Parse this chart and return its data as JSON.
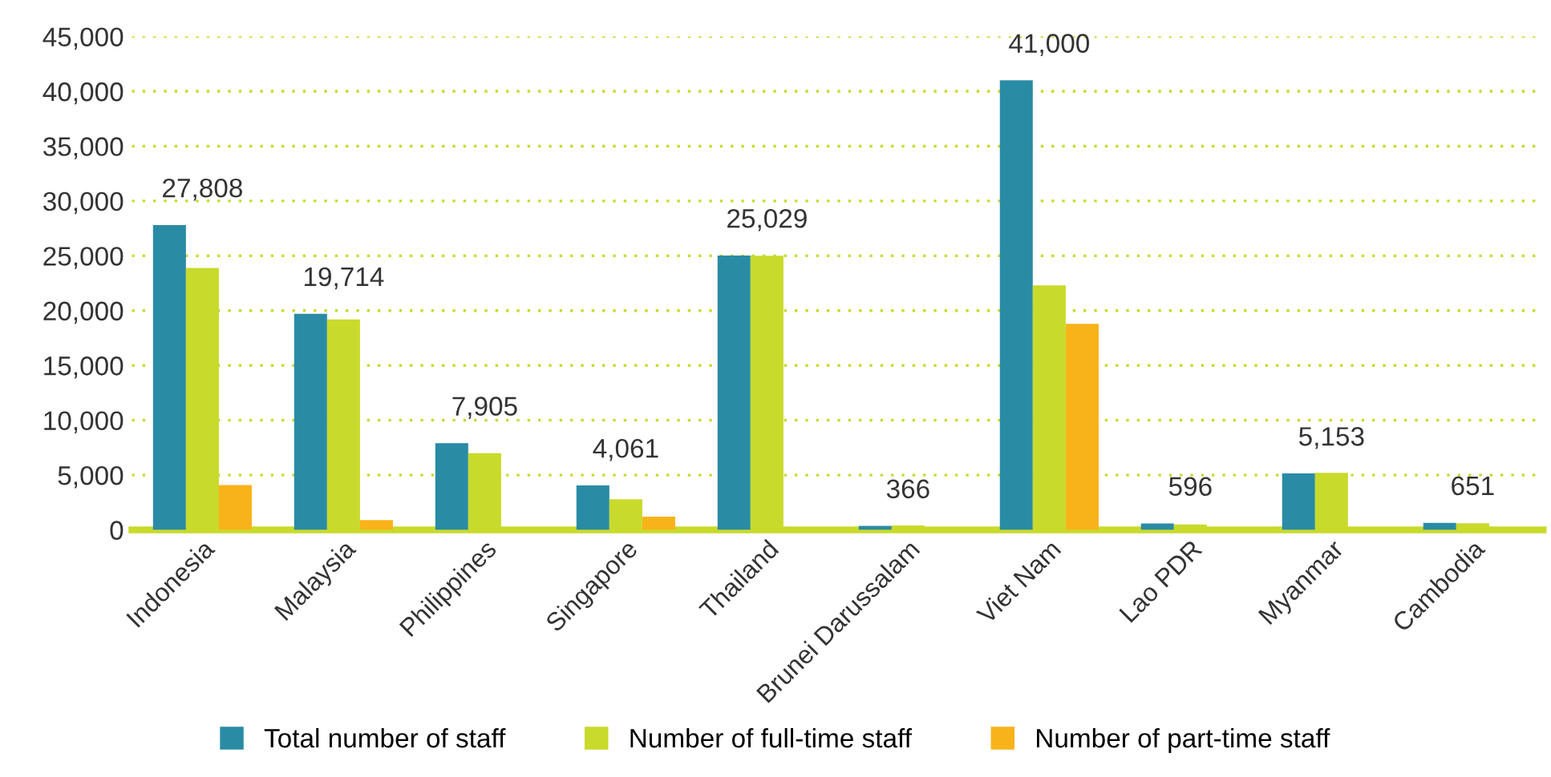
{
  "chart_data": {
    "type": "bar",
    "categories": [
      "Indonesia",
      "Malaysia",
      "Philippines",
      "Singapore",
      "Thailand",
      "Brunei Darussalam",
      "Viet Nam",
      "Lao PDR",
      "Myanmar",
      "Cambodia"
    ],
    "series": [
      {
        "name": "Total number of staff",
        "color": "#2a8ba5",
        "values": [
          27808,
          19714,
          7905,
          4061,
          25029,
          366,
          41000,
          596,
          5153,
          651
        ],
        "value_labels": [
          "27,808",
          "19,714",
          "7,905",
          "4,061",
          "25,029",
          "366",
          "41,000",
          "596",
          "5,153",
          "651"
        ]
      },
      {
        "name": "Number of full-time staff",
        "color": "#c8da2b",
        "values": [
          23900,
          19200,
          7000,
          2800,
          25000,
          400,
          22300,
          500,
          5200,
          600
        ]
      },
      {
        "name": "Number of part-time staff",
        "color": "#f8b31b",
        "values": [
          4100,
          900,
          null,
          1200,
          null,
          null,
          18800,
          null,
          null,
          null
        ]
      }
    ],
    "ylim": [
      0,
      45000
    ],
    "yticks": [
      {
        "value": 0,
        "label": "0"
      },
      {
        "value": 5000,
        "label": "5,000"
      },
      {
        "value": 10000,
        "label": "10,000"
      },
      {
        "value": 15000,
        "label": "15,000"
      },
      {
        "value": 20000,
        "label": "20,000"
      },
      {
        "value": 25000,
        "label": "25,000"
      },
      {
        "value": 30000,
        "label": "30,000"
      },
      {
        "value": 35000,
        "label": "35,000"
      },
      {
        "value": 40000,
        "label": "40,000"
      },
      {
        "value": 45000,
        "label": "45,000"
      }
    ],
    "grid": "y",
    "legend": "bottom"
  }
}
